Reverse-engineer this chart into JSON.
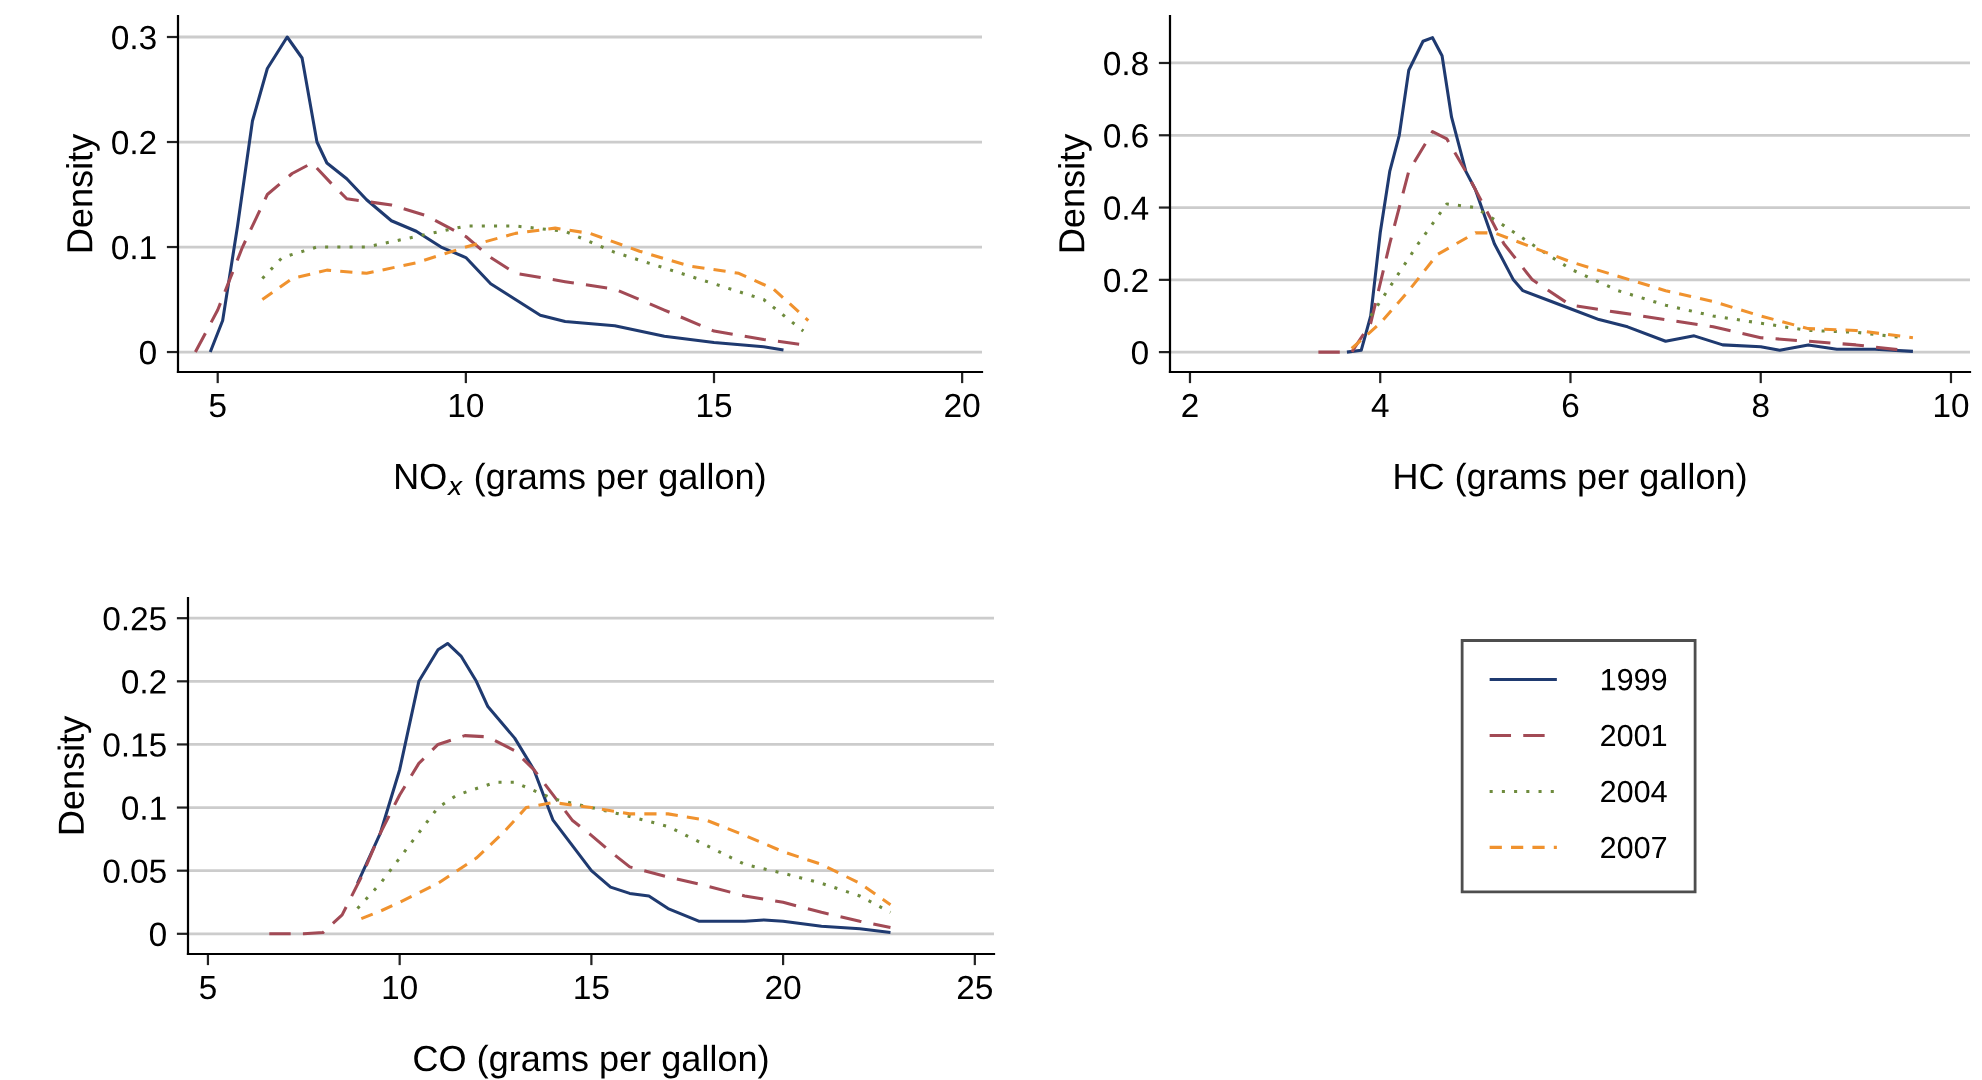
{
  "chart_data": [
    {
      "type": "line",
      "xlabel": "NO$_{x}$ (grams per gallon)",
      "ylabel": "Density",
      "xlim": [
        4.2,
        20.4
      ],
      "ylim": [
        -0.019,
        0.32
      ],
      "xticks": [
        5,
        10,
        15,
        20
      ],
      "yticks": [
        0,
        0.1,
        0.2,
        0.3
      ],
      "grid": "y",
      "legend": "bottom right",
      "series": [
        {
          "name": "1999",
          "color": "#1f3a70",
          "line_style": "solid",
          "x": [
            4.85,
            5.1,
            5.4,
            5.7,
            6.0,
            6.4,
            6.7,
            7.0,
            7.2,
            7.6,
            8.0,
            8.5,
            9.0,
            9.5,
            10,
            10.5,
            11,
            11.5,
            12,
            13,
            14,
            15,
            16,
            16.4
          ],
          "values": [
            0,
            0.03,
            0.12,
            0.22,
            0.27,
            0.3,
            0.28,
            0.2,
            0.18,
            0.165,
            0.145,
            0.125,
            0.115,
            0.1,
            0.09,
            0.065,
            0.05,
            0.035,
            0.029,
            0.025,
            0.015,
            0.009,
            0.005,
            0.002
          ]
        },
        {
          "name": "2001",
          "color": "#a24a55",
          "line_style": "dashed",
          "x": [
            4.55,
            5,
            5.5,
            6,
            6.5,
            6.9,
            7.3,
            7.6,
            8.5,
            9.2,
            10,
            10.5,
            11,
            12,
            13,
            14,
            15,
            16,
            16.8
          ],
          "values": [
            0,
            0.04,
            0.1,
            0.15,
            0.17,
            0.18,
            0.16,
            0.146,
            0.14,
            0.13,
            0.11,
            0.09,
            0.075,
            0.067,
            0.06,
            0.04,
            0.02,
            0.012,
            0.007
          ]
        },
        {
          "name": "2004",
          "color": "#6e8b3d",
          "line_style": "dotted",
          "x": [
            5.9,
            6.3,
            7,
            8,
            9,
            10,
            11,
            12,
            13,
            14,
            15,
            16,
            16.8
          ],
          "values": [
            0.07,
            0.09,
            0.1,
            0.1,
            0.11,
            0.12,
            0.12,
            0.115,
            0.095,
            0.08,
            0.065,
            0.05,
            0.02
          ]
        },
        {
          "name": "2007",
          "color": "#f0922e",
          "line_style": "dashed",
          "x": [
            5.9,
            6.5,
            7.2,
            8,
            9,
            10,
            11,
            11.8,
            12.5,
            13.5,
            14.5,
            15.5,
            16.2,
            16.9
          ],
          "values": [
            0.05,
            0.07,
            0.078,
            0.075,
            0.085,
            0.1,
            0.113,
            0.118,
            0.113,
            0.096,
            0.082,
            0.075,
            0.06,
            0.03
          ]
        }
      ]
    },
    {
      "type": "line",
      "xlabel": "HC (grams per gallon)",
      "ylabel": "Density",
      "xlim": [
        1.79,
        10.2
      ],
      "ylim": [
        -0.055,
        0.93
      ],
      "xticks": [
        2,
        4,
        6,
        8,
        10
      ],
      "yticks": [
        0,
        0.2,
        0.4,
        0.6,
        0.8
      ],
      "grid": "y",
      "series": [
        {
          "name": "1999",
          "color": "#1f3a70",
          "line_style": "solid",
          "x": [
            3.65,
            3.8,
            3.9,
            4.0,
            4.1,
            4.2,
            4.3,
            4.45,
            4.55,
            4.65,
            4.75,
            4.9,
            5.0,
            5.2,
            5.4,
            5.5,
            5.8,
            6.0,
            6.3,
            6.6,
            7.0,
            7.3,
            7.6,
            8.0,
            8.2,
            8.5,
            8.8,
            9.2,
            9.6
          ],
          "values": [
            0,
            0.005,
            0.1,
            0.33,
            0.5,
            0.6,
            0.78,
            0.86,
            0.87,
            0.82,
            0.65,
            0.5,
            0.45,
            0.3,
            0.2,
            0.17,
            0.14,
            0.12,
            0.09,
            0.07,
            0.03,
            0.045,
            0.02,
            0.015,
            0.005,
            0.02,
            0.008,
            0.008,
            0.002
          ]
        },
        {
          "name": "2001",
          "color": "#a24a55",
          "line_style": "dashed",
          "x": [
            3.35,
            3.7,
            3.9,
            4.1,
            4.3,
            4.55,
            4.7,
            4.9,
            5.1,
            5.3,
            5.6,
            6.0,
            6.5,
            7.0,
            7.5,
            8.0,
            8.5,
            9.0,
            9.5
          ],
          "values": [
            0,
            0,
            0.08,
            0.3,
            0.5,
            0.61,
            0.59,
            0.5,
            0.4,
            0.3,
            0.2,
            0.13,
            0.11,
            0.09,
            0.07,
            0.04,
            0.03,
            0.02,
            0.005
          ]
        },
        {
          "name": "2004",
          "color": "#6e8b3d",
          "line_style": "dotted",
          "x": [
            3.9,
            4.1,
            4.4,
            4.7,
            5.0,
            5.3,
            5.7,
            6.0,
            6.5,
            7.0,
            7.5,
            8.0,
            8.5,
            9.0,
            9.5
          ],
          "values": [
            0.1,
            0.18,
            0.3,
            0.41,
            0.4,
            0.35,
            0.28,
            0.23,
            0.17,
            0.13,
            0.1,
            0.08,
            0.06,
            0.055,
            0.04
          ]
        },
        {
          "name": "2007",
          "color": "#f0922e",
          "line_style": "dashed",
          "x": [
            3.7,
            4.0,
            4.3,
            4.6,
            5.0,
            5.2,
            5.6,
            6.0,
            6.5,
            7.0,
            7.5,
            8.0,
            8.5,
            9.0,
            9.6
          ],
          "values": [
            0.01,
            0.08,
            0.17,
            0.27,
            0.33,
            0.33,
            0.29,
            0.25,
            0.21,
            0.17,
            0.14,
            0.1,
            0.065,
            0.06,
            0.04
          ]
        }
      ]
    },
    {
      "type": "line",
      "xlabel": "CO (grams per gallon)",
      "ylabel": "Density",
      "xlim": [
        4.48,
        25.5
      ],
      "ylim": [
        -0.016,
        0.266
      ],
      "xticks": [
        5,
        10,
        15,
        20,
        25
      ],
      "yticks": [
        0,
        0.05,
        0.1,
        0.15,
        0.2,
        0.25
      ],
      "grid": "y",
      "series": [
        {
          "name": "1999",
          "color": "#1f3a70",
          "line_style": "solid",
          "x": [
            8.9,
            9.5,
            10,
            10.5,
            11.0,
            11.25,
            11.6,
            12,
            12.3,
            13,
            13.5,
            14,
            14.5,
            15,
            15.5,
            16,
            16.5,
            17,
            17.8,
            19,
            19.5,
            20,
            21,
            22,
            22.8
          ],
          "values": [
            0.04,
            0.08,
            0.13,
            0.2,
            0.225,
            0.23,
            0.22,
            0.2,
            0.18,
            0.155,
            0.13,
            0.09,
            0.07,
            0.05,
            0.037,
            0.032,
            0.03,
            0.02,
            0.01,
            0.01,
            0.011,
            0.01,
            0.006,
            0.004,
            0.001
          ]
        },
        {
          "name": "2001",
          "color": "#a24a55",
          "line_style": "dashed",
          "x": [
            6.6,
            7.5,
            8.0,
            8.5,
            9,
            9.5,
            10,
            10.5,
            11,
            11.7,
            12.3,
            13,
            13.5,
            14,
            14.5,
            15,
            15.5,
            16,
            17,
            18,
            19,
            20,
            21,
            22,
            22.8
          ],
          "values": [
            0,
            0,
            0.001,
            0.015,
            0.045,
            0.08,
            0.11,
            0.135,
            0.15,
            0.157,
            0.156,
            0.145,
            0.13,
            0.11,
            0.09,
            0.078,
            0.065,
            0.053,
            0.045,
            0.038,
            0.03,
            0.025,
            0.017,
            0.01,
            0.005
          ]
        },
        {
          "name": "2004",
          "color": "#6e8b3d",
          "line_style": "dotted",
          "x": [
            8.9,
            9.5,
            10,
            10.5,
            11,
            11.5,
            12.5,
            13,
            14,
            15,
            16,
            17,
            18,
            19,
            20,
            21,
            22,
            22.8
          ],
          "values": [
            0.02,
            0.04,
            0.06,
            0.08,
            0.1,
            0.11,
            0.12,
            0.12,
            0.107,
            0.1,
            0.093,
            0.085,
            0.07,
            0.055,
            0.048,
            0.04,
            0.03,
            0.017
          ]
        },
        {
          "name": "2007",
          "color": "#f0922e",
          "line_style": "dashed",
          "x": [
            9,
            9.5,
            10,
            11,
            12,
            12.7,
            13.3,
            14,
            15,
            16,
            17,
            18,
            19,
            20,
            21,
            22,
            22.8
          ],
          "values": [
            0.012,
            0.018,
            0.025,
            0.04,
            0.06,
            0.08,
            0.1,
            0.104,
            0.1,
            0.095,
            0.095,
            0.09,
            0.078,
            0.065,
            0.055,
            0.04,
            0.023
          ]
        }
      ]
    }
  ]
}
